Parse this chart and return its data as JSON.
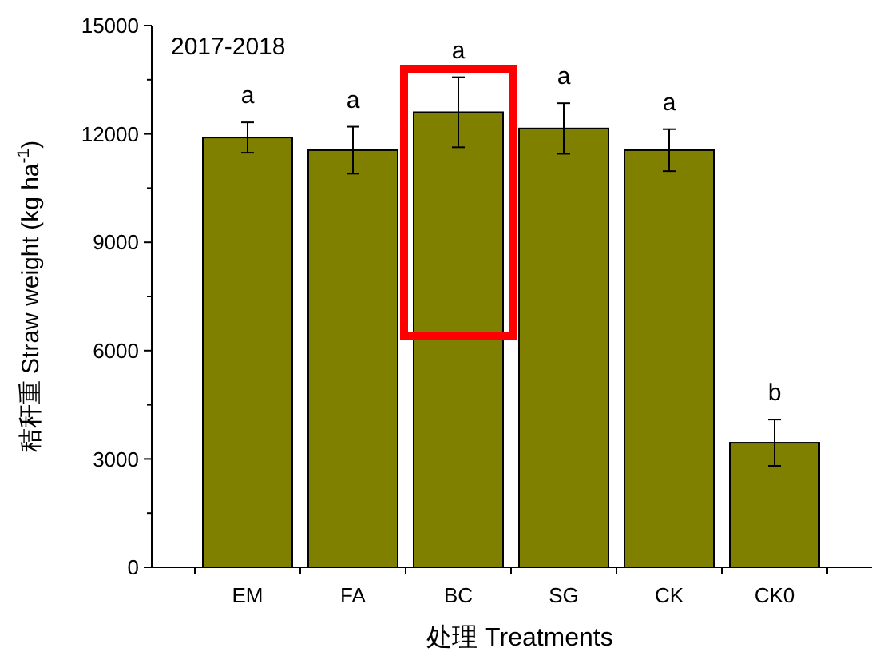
{
  "chart_data": {
    "type": "bar",
    "categories": [
      "EM",
      "FA",
      "BC",
      "SG",
      "CK",
      "CK0"
    ],
    "values": [
      11900,
      11550,
      12600,
      12150,
      11550,
      3450
    ],
    "errors": [
      420,
      650,
      970,
      700,
      580,
      640
    ],
    "color": "#808000",
    "ylim": [
      0,
      15000
    ],
    "yticks": [
      0,
      3000,
      6000,
      9000,
      12000,
      15000
    ],
    "xlabel": "处理 Treatments",
    "ylabel": "秸秆重 Straw weight (kg ha$^{-1}$)",
    "annotations": [
      "2017-2018",
      {
        "text": "a",
        "x": "EM",
        "y": 12320
      },
      {
        "text": "a",
        "x": "FA",
        "y": 12200
      },
      {
        "text": "a",
        "x": "BC",
        "y": 13570
      },
      {
        "text": "a",
        "x": "SG",
        "y": 12850
      },
      {
        "text": "a",
        "x": "CK",
        "y": 12130
      },
      {
        "text": "b",
        "x": "CK0",
        "y": 4090
      }
    ]
  }
}
